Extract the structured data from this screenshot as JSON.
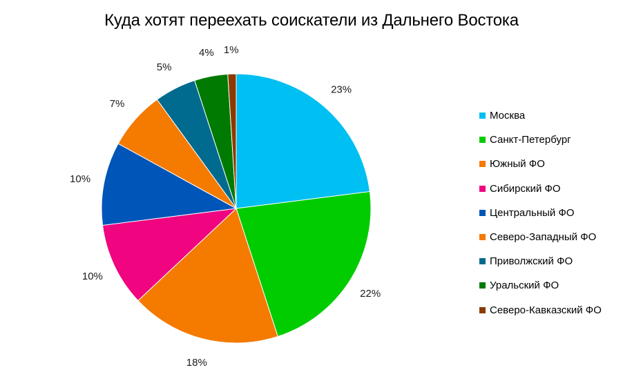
{
  "chart_data": {
    "type": "pie",
    "title": "Куда хотят переехать соискатели из Дальнего Востока",
    "legend_position": "right",
    "slices": [
      {
        "label": "Москва",
        "value": 23,
        "display": "23%",
        "color": "#00bff3"
      },
      {
        "label": "Санкт-Петербург",
        "value": 22,
        "display": "22%",
        "color": "#00cc00"
      },
      {
        "label": "Южный ФО",
        "value": 18,
        "display": "18%",
        "color": "#f47a00"
      },
      {
        "label": "Сибирский ФО",
        "value": 10,
        "display": "10%",
        "color": "#f0047f"
      },
      {
        "label": "Центральный ФО",
        "value": 10,
        "display": "10%",
        "color": "#0055b8"
      },
      {
        "label": "Северо-Западный ФО",
        "value": 7,
        "display": "7%",
        "color": "#f47a00"
      },
      {
        "label": "Приволжский ФО",
        "value": 5,
        "display": "5%",
        "color": "#006b8f"
      },
      {
        "label": "Уральский ФО",
        "value": 4,
        "display": "4%",
        "color": "#007a00"
      },
      {
        "label": "Северо-Кавказский ФО",
        "value": 1,
        "display": "1%",
        "color": "#8b3a00"
      }
    ]
  }
}
